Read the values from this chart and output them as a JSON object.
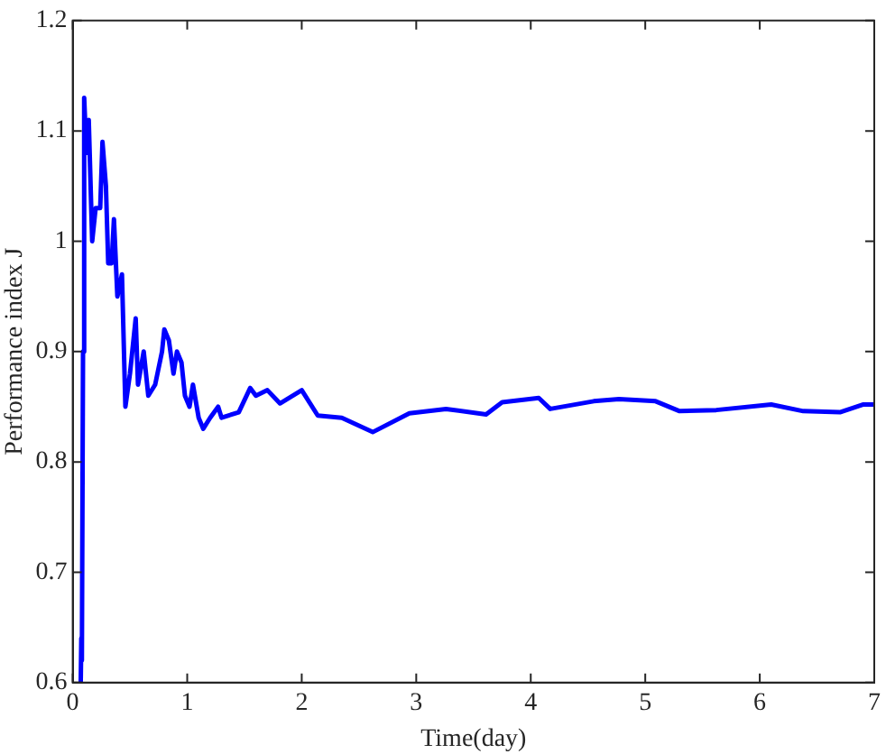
{
  "chart_data": {
    "type": "line",
    "xlabel": "Time(day)",
    "ylabel": "Performance index J",
    "xlim": [
      0,
      7
    ],
    "xticks": [
      0,
      1,
      2,
      3,
      4,
      5,
      6,
      7
    ],
    "ylim": [
      0.6,
      1.2
    ],
    "yticks": [
      0.6,
      0.7,
      0.8,
      0.9,
      1,
      1.1,
      1.2
    ],
    "grid": false,
    "legend": false,
    "marker": "none",
    "line_style": "solid",
    "series": [
      {
        "color": "#0000ff",
        "x": [
          0.07,
          0.075,
          0.08,
          0.09,
          0.1,
          0.12,
          0.14,
          0.17,
          0.2,
          0.24,
          0.26,
          0.29,
          0.31,
          0.34,
          0.36,
          0.39,
          0.43,
          0.46,
          0.5,
          0.55,
          0.57,
          0.62,
          0.66,
          0.72,
          0.78,
          0.8,
          0.84,
          0.88,
          0.91,
          0.95,
          0.98,
          1.02,
          1.05,
          1.1,
          1.14,
          1.2,
          1.27,
          1.3,
          1.45,
          1.55,
          1.6,
          1.7,
          1.81,
          2.0,
          2.14,
          2.35,
          2.62,
          2.94,
          3.26,
          3.61,
          3.75,
          4.07,
          4.17,
          4.55,
          4.77,
          5.09,
          5.3,
          5.62,
          6.1,
          6.38,
          6.7,
          6.9,
          7
        ],
        "values": [
          0.6,
          0.64,
          0.62,
          0.9,
          1.13,
          1.08,
          1.11,
          1.0,
          1.03,
          1.03,
          1.09,
          1.05,
          0.98,
          0.98,
          1.02,
          0.95,
          0.97,
          0.85,
          0.88,
          0.93,
          0.87,
          0.9,
          0.86,
          0.87,
          0.9,
          0.92,
          0.91,
          0.88,
          0.9,
          0.89,
          0.86,
          0.85,
          0.87,
          0.84,
          0.83,
          0.84,
          0.85,
          0.84,
          0.845,
          0.867,
          0.86,
          0.865,
          0.853,
          0.865,
          0.842,
          0.84,
          0.827,
          0.844,
          0.848,
          0.843,
          0.854,
          0.858,
          0.848,
          0.855,
          0.857,
          0.855,
          0.846,
          0.847,
          0.852,
          0.846,
          0.845,
          0.852,
          0.852
        ]
      }
    ]
  }
}
